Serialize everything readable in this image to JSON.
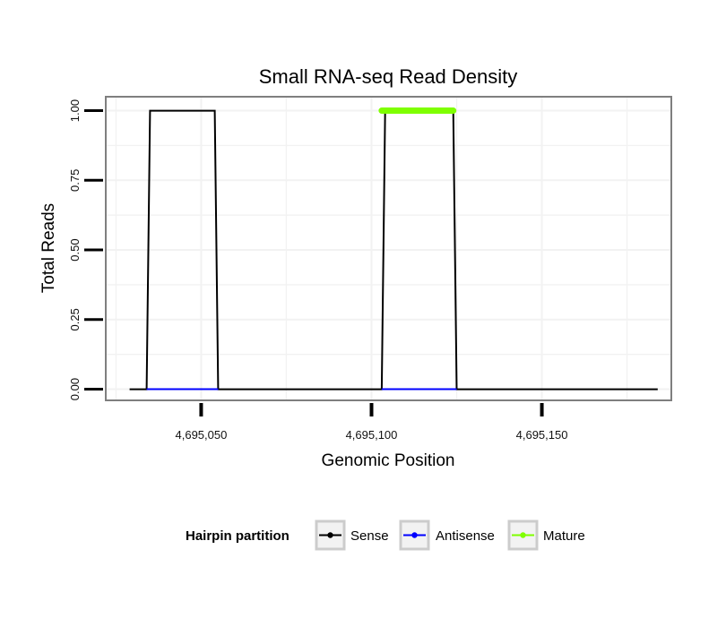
{
  "chart_data": {
    "type": "line",
    "title": "Small RNA-seq Read Density",
    "xlabel": "Genomic Position",
    "ylabel": "Total Reads",
    "xlim": [
      4695022,
      4695188
    ],
    "ylim": [
      -0.04,
      1.05
    ],
    "x_ticks": [
      4695050,
      4695100,
      4695150
    ],
    "x_tick_labels": [
      "4,695,050",
      "4,695,100",
      "4,695,150"
    ],
    "y_ticks": [
      0.0,
      0.25,
      0.5,
      0.75,
      1.0
    ],
    "y_tick_labels": [
      "0.00",
      "0.25",
      "0.50",
      "0.75",
      "1.00"
    ],
    "grid": true,
    "legend": {
      "title": "Hairpin partition",
      "position": "bottom",
      "entries": [
        "Sense",
        "Antisense",
        "Mature"
      ]
    },
    "series": [
      {
        "name": "Sense",
        "color": "#000000",
        "x": [
          4695029,
          4695034,
          4695035,
          4695054,
          4695055,
          4695103,
          4695104,
          4695124,
          4695125,
          4695184
        ],
        "y": [
          0,
          0,
          1,
          1,
          0,
          0,
          1,
          1,
          0,
          0
        ]
      },
      {
        "name": "Antisense",
        "color": "#0000ff",
        "x": [
          4695034,
          4695055
        ],
        "y": [
          0,
          0
        ],
        "segments": [
          [
            4695034,
            4695055
          ],
          [
            4695103,
            4695125
          ]
        ]
      },
      {
        "name": "Mature",
        "color": "#7fff00",
        "x": [
          4695103,
          4695124
        ],
        "y": [
          1,
          1
        ]
      }
    ]
  }
}
